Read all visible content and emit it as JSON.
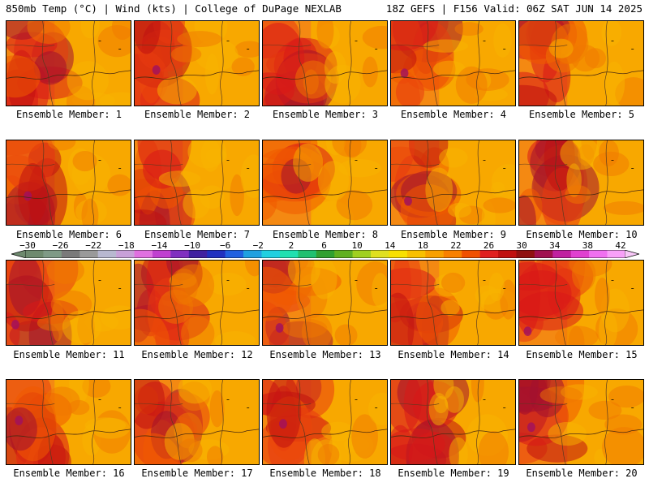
{
  "header": {
    "left": "850mb Temp (°C) | Wind (kts) | College of DuPage NEXLAB",
    "right": "18Z GEFS | F156 Valid: 06Z SAT JUN 14 2025"
  },
  "panels": [
    {
      "label": "Ensemble Member: 1"
    },
    {
      "label": "Ensemble Member: 2"
    },
    {
      "label": "Ensemble Member: 3"
    },
    {
      "label": "Ensemble Member: 4"
    },
    {
      "label": "Ensemble Member: 5"
    },
    {
      "label": "Ensemble Member: 6"
    },
    {
      "label": "Ensemble Member: 7"
    },
    {
      "label": "Ensemble Member: 8"
    },
    {
      "label": "Ensemble Member: 9"
    },
    {
      "label": "Ensemble Member: 10"
    },
    {
      "label": "Ensemble Member: 11"
    },
    {
      "label": "Ensemble Member: 12"
    },
    {
      "label": "Ensemble Member: 13"
    },
    {
      "label": "Ensemble Member: 14"
    },
    {
      "label": "Ensemble Member: 15"
    },
    {
      "label": "Ensemble Member: 16"
    },
    {
      "label": "Ensemble Member: 17"
    },
    {
      "label": "Ensemble Member: 18"
    },
    {
      "label": "Ensemble Member: 19"
    },
    {
      "label": "Ensemble Member: 20"
    }
  ],
  "colorbar": {
    "tick_labels": [
      "−30",
      "−26",
      "−22",
      "−18",
      "−14",
      "−10",
      "−6",
      "−2",
      "2",
      "6",
      "10",
      "14",
      "18",
      "22",
      "26",
      "30",
      "34",
      "38",
      "42"
    ],
    "colors": [
      "#6e8a6e",
      "#7f9a86",
      "#7a7a7a",
      "#9a9a9a",
      "#b8b8d0",
      "#c8a0d8",
      "#e070e0",
      "#c040d0",
      "#8030c0",
      "#4020a0",
      "#2030c0",
      "#2060e0",
      "#20a0e0",
      "#20d0e0",
      "#20e0b0",
      "#20c070",
      "#30a030",
      "#60b020",
      "#a0d020",
      "#e0e020",
      "#f8e000",
      "#f8c000",
      "#f8a000",
      "#f88000",
      "#f05000",
      "#e02020",
      "#c01010",
      "#901010",
      "#a01050",
      "#c020a0",
      "#e040d0",
      "#f070f0",
      "#f8a0f8"
    ]
  }
}
